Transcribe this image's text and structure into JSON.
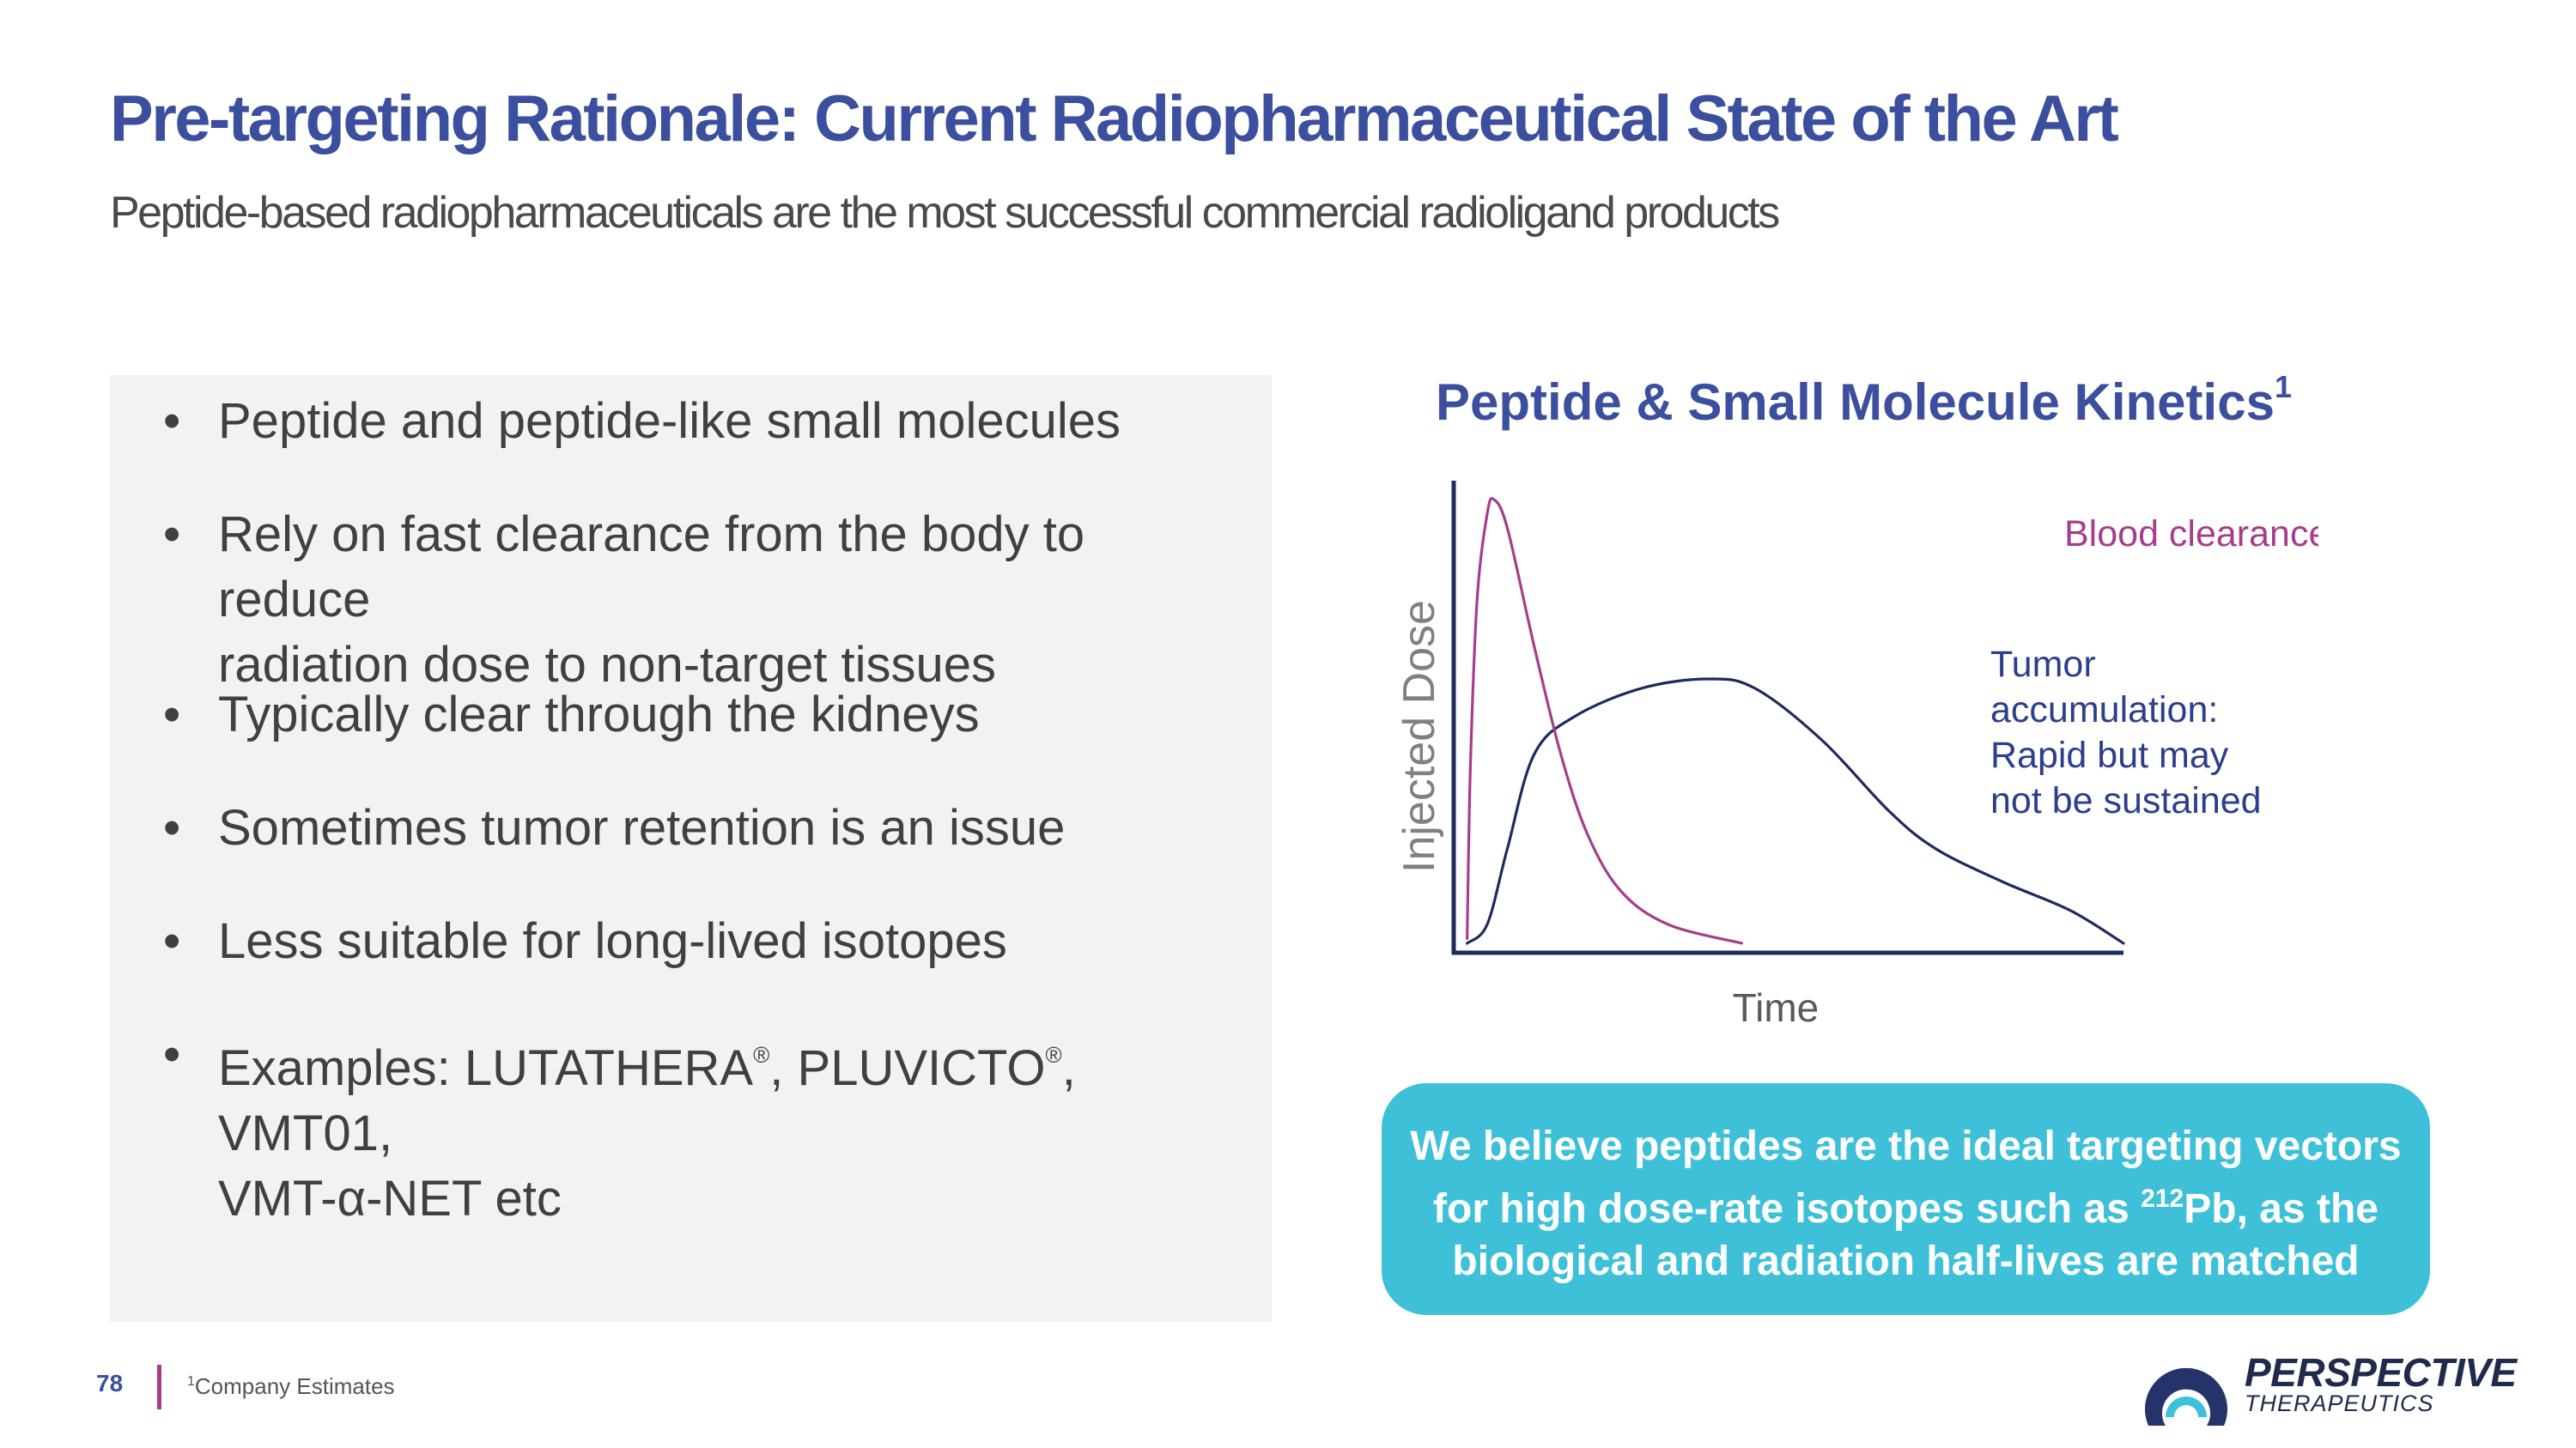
{
  "header": {
    "title": "Pre-targeting Rationale: Current Radiopharmaceutical State of the Art",
    "subtitle": "Peptide-based radiopharmaceuticals are the most successful commercial radioligand products"
  },
  "bullets": {
    "b1": "Peptide and peptide-like small molecules",
    "b2_line1": "Rely on fast clearance from the body to reduce",
    "b2_line2": "radiation dose to non-target tissues",
    "b3": "Typically clear through the kidneys",
    "b4": "Sometimes tumor retention is an issue",
    "b5": "Less suitable for long-lived isotopes",
    "b6_prefix": "Examples: LUTATHERA",
    "b6_reg1": "®",
    "b6_mid": ", PLUVICTO",
    "b6_reg2": "®",
    "b6_suffix": ", VMT01,",
    "b6_line2": "VMT-α-NET etc"
  },
  "chart_data": {
    "type": "line",
    "title": "Peptide & Small Molecule Kinetics",
    "title_superscript": "1",
    "xlabel": "Time",
    "ylabel": "Injected Dose",
    "x_units": "relative time (0–100)",
    "y_units": "relative dose (0–100)",
    "xlim": [
      0,
      100
    ],
    "ylim": [
      0,
      100
    ],
    "grid": false,
    "series": [
      {
        "name": "Blood clearance",
        "label": "Blood clearance: rapid",
        "color": "#a63d8c",
        "points": [
          [
            2,
            3
          ],
          [
            2.5,
            40
          ],
          [
            3.5,
            75
          ],
          [
            5,
            93
          ],
          [
            6,
            96
          ],
          [
            8,
            90
          ],
          [
            12,
            65
          ],
          [
            16,
            42
          ],
          [
            20,
            25
          ],
          [
            25,
            13
          ],
          [
            32,
            6
          ],
          [
            43,
            2
          ]
        ]
      },
      {
        "name": "Tumor accumulation",
        "label_lines": [
          "Tumor",
          "accumulation:",
          "Rapid but may",
          "not be sustained"
        ],
        "color": "#1f2a5e",
        "points": [
          [
            2,
            2
          ],
          [
            5,
            6
          ],
          [
            8,
            22
          ],
          [
            12,
            42
          ],
          [
            18,
            50
          ],
          [
            28,
            56
          ],
          [
            38,
            58
          ],
          [
            45,
            56
          ],
          [
            55,
            45
          ],
          [
            65,
            30
          ],
          [
            72,
            22
          ],
          [
            82,
            15
          ],
          [
            92,
            9
          ],
          [
            100,
            2
          ]
        ]
      }
    ]
  },
  "callout": {
    "line1": "We believe peptides are the ideal targeting vectors",
    "line2_pre": "for high dose-rate isotopes such as ",
    "line2_sup": "212",
    "line2_post": "Pb, as the",
    "line3": "biological and radiation half-lives are matched"
  },
  "footer": {
    "page_number": "78",
    "footnote_marker": "1",
    "footnote_text": "Company Estimates"
  },
  "logo": {
    "name": "PERSPECTIVE",
    "subname": "THERAPEUTICS"
  },
  "colors": {
    "brand_blue": "#3b4f9e",
    "magenta": "#a63d8c",
    "navy": "#1f2a5e",
    "teal": "#3ec1d8"
  }
}
